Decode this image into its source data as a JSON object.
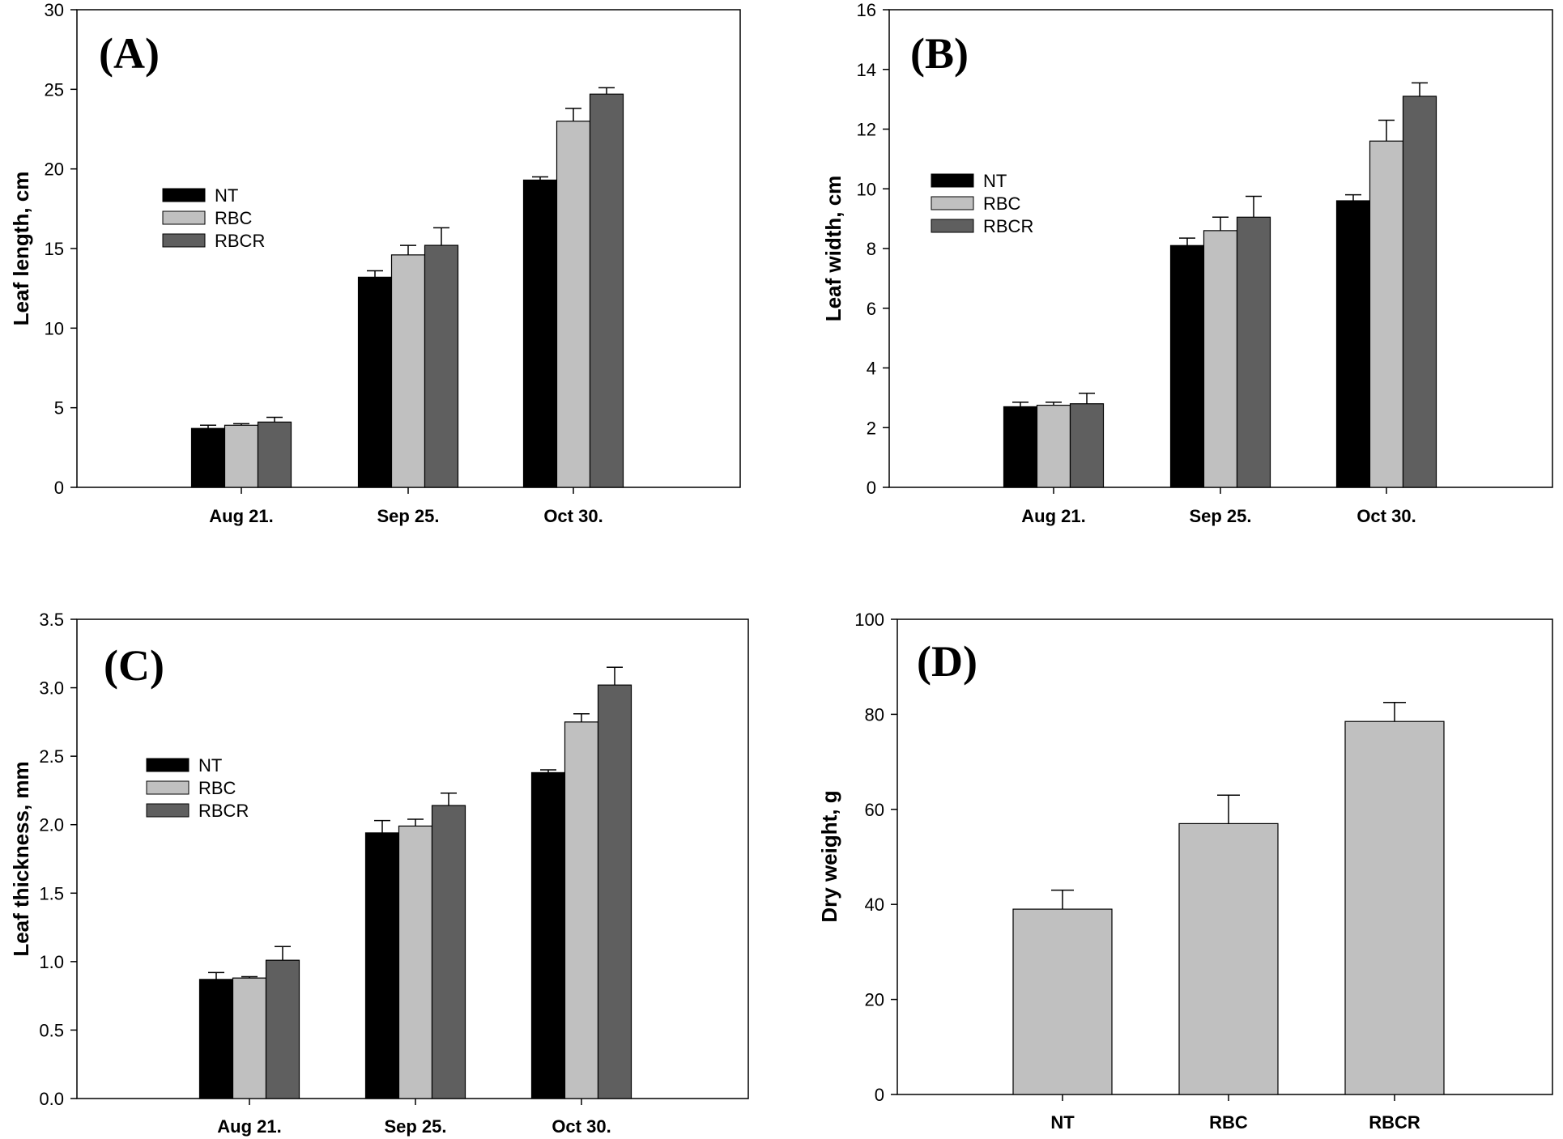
{
  "figure": {
    "colors": {
      "NT": "#000000",
      "RBC": "#c0c0c0",
      "RBCR": "#5f5f5f",
      "single": "#c0c0c0"
    }
  },
  "chart_data": [
    {
      "type": "bar",
      "panel": "(A)",
      "ylabel": "Leaf length, cm",
      "xlabel": "",
      "ylim": [
        0,
        30
      ],
      "yticks": [
        "0",
        "5",
        "10",
        "15",
        "20",
        "25",
        "30"
      ],
      "categories": [
        "Aug 21.",
        "Sep 25.",
        "Oct 30."
      ],
      "legend_position": "upper-left",
      "series": [
        {
          "name": "NT",
          "values": [
            3.7,
            13.2,
            19.3
          ],
          "errors": [
            0.2,
            0.4,
            0.2
          ]
        },
        {
          "name": "RBC",
          "values": [
            3.9,
            14.6,
            23.0
          ],
          "errors": [
            0.1,
            0.6,
            0.8
          ]
        },
        {
          "name": "RBCR",
          "values": [
            4.1,
            15.2,
            24.7
          ],
          "errors": [
            0.3,
            1.1,
            0.4
          ]
        }
      ]
    },
    {
      "type": "bar",
      "panel": "(B)",
      "ylabel": "Leaf width, cm",
      "xlabel": "",
      "ylim": [
        0,
        16
      ],
      "yticks": [
        "0",
        "2",
        "4",
        "6",
        "8",
        "10",
        "12",
        "14",
        "16"
      ],
      "categories": [
        "Aug 21.",
        "Sep 25.",
        "Oct 30."
      ],
      "legend_position": "upper-left",
      "series": [
        {
          "name": "NT",
          "values": [
            2.7,
            8.1,
            9.6
          ],
          "errors": [
            0.15,
            0.25,
            0.2
          ]
        },
        {
          "name": "RBC",
          "values": [
            2.75,
            8.6,
            11.6
          ],
          "errors": [
            0.1,
            0.45,
            0.7
          ]
        },
        {
          "name": "RBCR",
          "values": [
            2.8,
            9.05,
            13.1
          ],
          "errors": [
            0.35,
            0.7,
            0.45
          ]
        }
      ]
    },
    {
      "type": "bar",
      "panel": "(C)",
      "ylabel": "Leaf thickness, mm",
      "xlabel": "",
      "ylim": [
        0,
        3.5
      ],
      "yticks": [
        "0.0",
        "0.5",
        "1.0",
        "1.5",
        "2.0",
        "2.5",
        "3.0",
        "3.5"
      ],
      "categories": [
        "Aug 21.",
        "Sep 25.",
        "Oct 30."
      ],
      "legend_position": "upper-left",
      "series": [
        {
          "name": "NT",
          "values": [
            0.87,
            1.94,
            2.38
          ],
          "errors": [
            0.05,
            0.09,
            0.02
          ]
        },
        {
          "name": "RBC",
          "values": [
            0.88,
            1.99,
            2.75
          ],
          "errors": [
            0.01,
            0.05,
            0.06
          ]
        },
        {
          "name": "RBCR",
          "values": [
            1.01,
            2.14,
            3.02
          ],
          "errors": [
            0.1,
            0.09,
            0.13
          ]
        }
      ]
    },
    {
      "type": "bar",
      "panel": "(D)",
      "ylabel": "Dry weight, g",
      "xlabel": "",
      "ylim": [
        0,
        100
      ],
      "yticks": [
        "0",
        "20",
        "40",
        "60",
        "80",
        "100"
      ],
      "categories": [
        "NT",
        "RBC",
        "RBCR"
      ],
      "series": [
        {
          "values": [
            39,
            57,
            78.5
          ],
          "errors": [
            4,
            6,
            4
          ]
        }
      ]
    }
  ]
}
